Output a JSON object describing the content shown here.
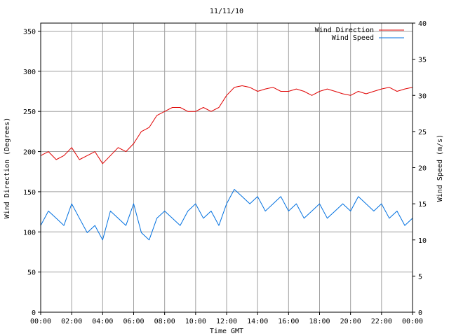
{
  "chart_data": {
    "type": "line",
    "title": "11/11/10",
    "xlabel": "Time GMT",
    "ylabel_left": "Wind Direction (Degrees)",
    "ylabel_right": "Wind Speed (m/s)",
    "x_ticks": [
      "00:00",
      "02:00",
      "04:00",
      "06:00",
      "08:00",
      "10:00",
      "12:00",
      "14:00",
      "16:00",
      "18:00",
      "20:00",
      "22:00",
      "00:00"
    ],
    "x_range_hours": [
      0,
      24
    ],
    "y_left_ticks": [
      "0",
      "50",
      "100",
      "150",
      "200",
      "250",
      "300",
      "350"
    ],
    "y_left_range": [
      0,
      360
    ],
    "y_right_ticks": [
      "0",
      "5",
      "10",
      "15",
      "20",
      "25",
      "30",
      "35",
      "40"
    ],
    "y_right_range": [
      0,
      40
    ],
    "grid": true,
    "legend_position": "top-right",
    "series": [
      {
        "name": "Wind Direction",
        "axis": "left",
        "color": "#e00000",
        "hours": [
          0,
          0.5,
          1,
          1.5,
          2,
          2.5,
          3,
          3.5,
          4,
          4.5,
          5,
          5.5,
          6,
          6.5,
          7,
          7.5,
          8,
          8.5,
          9,
          9.5,
          10,
          10.5,
          11,
          11.5,
          12,
          12.5,
          13,
          13.5,
          14,
          14.5,
          15,
          15.5,
          16,
          16.5,
          17,
          17.5,
          18,
          18.5,
          19,
          19.5,
          20,
          20.5,
          21,
          21.5,
          22,
          22.5,
          23,
          23.5,
          24
        ],
        "values": [
          195,
          200,
          190,
          195,
          205,
          190,
          195,
          200,
          185,
          195,
          205,
          200,
          210,
          225,
          230,
          245,
          250,
          255,
          255,
          250,
          250,
          255,
          250,
          255,
          270,
          280,
          282,
          280,
          275,
          278,
          280,
          275,
          275,
          278,
          275,
          270,
          275,
          278,
          275,
          272,
          270,
          275,
          272,
          275,
          278,
          280,
          275,
          278,
          280
        ]
      },
      {
        "name": "Wind Speed",
        "axis": "right",
        "color": "#0070e0",
        "hours": [
          0,
          0.5,
          1,
          1.5,
          2,
          2.5,
          3,
          3.5,
          4,
          4.5,
          5,
          5.5,
          6,
          6.5,
          7,
          7.5,
          8,
          8.5,
          9,
          9.5,
          10,
          10.5,
          11,
          11.5,
          12,
          12.5,
          13,
          13.5,
          14,
          14.5,
          15,
          15.5,
          16,
          16.5,
          17,
          17.5,
          18,
          18.5,
          19,
          19.5,
          20,
          20.5,
          21,
          21.5,
          22,
          22.5,
          23,
          23.5,
          24
        ],
        "values": [
          12,
          14,
          13,
          12,
          15,
          13,
          11,
          12,
          10,
          14,
          13,
          12,
          15,
          11,
          10,
          13,
          14,
          13,
          12,
          14,
          15,
          13,
          14,
          12,
          15,
          17,
          16,
          15,
          16,
          14,
          15,
          16,
          14,
          15,
          13,
          14,
          15,
          13,
          14,
          15,
          14,
          16,
          15,
          14,
          15,
          13,
          14,
          12,
          13
        ]
      }
    ]
  }
}
